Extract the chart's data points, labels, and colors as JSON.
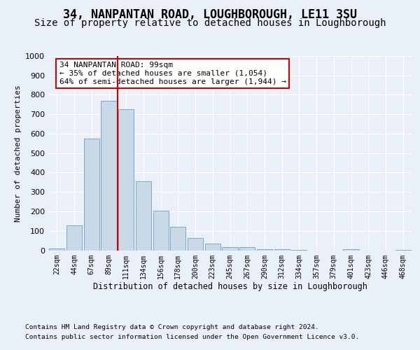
{
  "title": "34, NANPANTAN ROAD, LOUGHBOROUGH, LE11 3SU",
  "subtitle": "Size of property relative to detached houses in Loughborough",
  "xlabel": "Distribution of detached houses by size in Loughborough",
  "ylabel": "Number of detached properties",
  "footer_line1": "Contains HM Land Registry data © Crown copyright and database right 2024.",
  "footer_line2": "Contains public sector information licensed under the Open Government Licence v3.0.",
  "annotation_line1": "34 NANPANTAN ROAD: 99sqm",
  "annotation_line2": "← 35% of detached houses are smaller (1,054)",
  "annotation_line3": "64% of semi-detached houses are larger (1,944) →",
  "bar_color": "#c9d9e8",
  "bar_edge_color": "#7aa8cc",
  "vline_color": "#cc0000",
  "vline_x": 3.5,
  "categories": [
    "22sqm",
    "44sqm",
    "67sqm",
    "89sqm",
    "111sqm",
    "134sqm",
    "156sqm",
    "178sqm",
    "200sqm",
    "223sqm",
    "245sqm",
    "267sqm",
    "290sqm",
    "312sqm",
    "334sqm",
    "357sqm",
    "379sqm",
    "401sqm",
    "423sqm",
    "446sqm",
    "468sqm"
  ],
  "values": [
    10,
    128,
    575,
    770,
    725,
    355,
    205,
    120,
    63,
    35,
    15,
    15,
    7,
    5,
    3,
    0,
    0,
    5,
    0,
    0,
    2
  ],
  "ylim": [
    0,
    1000
  ],
  "yticks": [
    0,
    100,
    200,
    300,
    400,
    500,
    600,
    700,
    800,
    900,
    1000
  ],
  "bg_color": "#eaf0f8",
  "axes_bg_color": "#eaf0f8",
  "grid_color": "#ffffff",
  "title_fontsize": 12,
  "subtitle_fontsize": 10,
  "annotation_box_color": "#cc0000"
}
